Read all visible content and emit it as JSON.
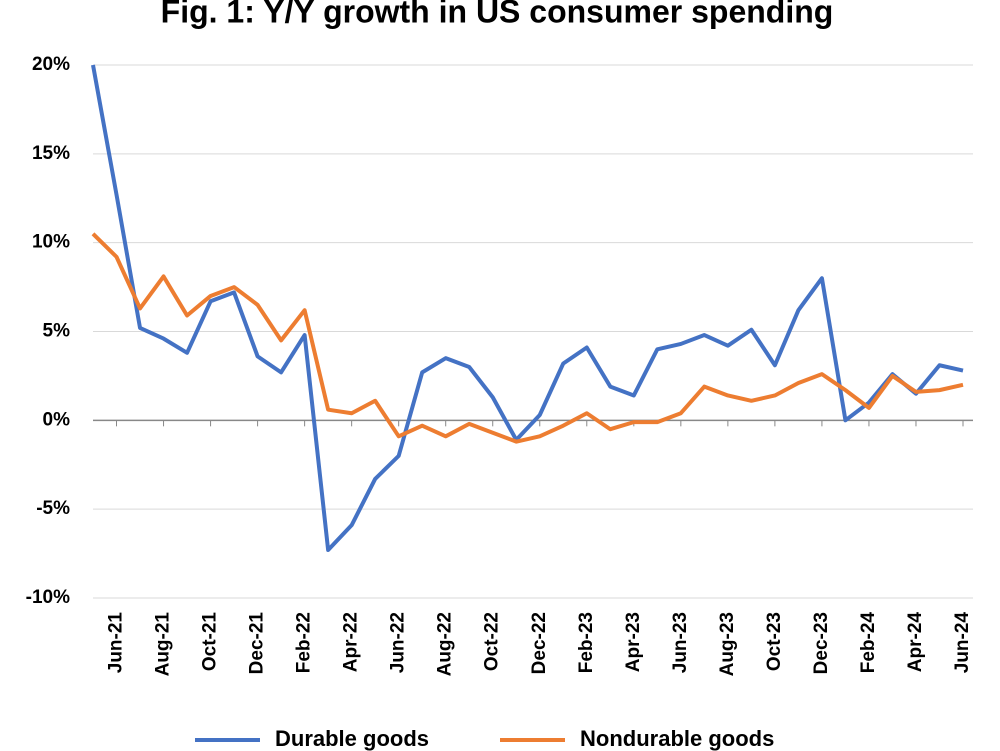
{
  "chart_data": {
    "type": "line",
    "title": "Fig. 1: Y/Y growth in US consumer spending",
    "categories": [
      null,
      "Jun-21",
      null,
      "Aug-21",
      null,
      "Oct-21",
      null,
      "Dec-21",
      null,
      "Feb-22",
      null,
      "Apr-22",
      null,
      "Jun-22",
      null,
      "Aug-22",
      null,
      "Oct-22",
      null,
      "Dec-22",
      null,
      "Feb-23",
      null,
      "Apr-23",
      null,
      "Jun-23",
      null,
      "Aug-23",
      null,
      "Oct-23",
      null,
      "Dec-23",
      null,
      "Feb-24",
      null,
      "Apr-24",
      null,
      "Jun-24"
    ],
    "series": [
      {
        "name": "Durable goods",
        "color": "#4472c4",
        "values": [
          20,
          12.7,
          5.2,
          4.6,
          3.8,
          6.7,
          7.2,
          3.6,
          2.7,
          4.8,
          -7.3,
          -5.9,
          -3.3,
          -2,
          2.7,
          3.5,
          3,
          1.3,
          -1.1,
          0.3,
          3.2,
          4.1,
          1.9,
          1.4,
          4,
          4.3,
          4.8,
          4.2,
          5.1,
          3.1,
          6.2,
          8,
          0,
          1,
          2.6,
          1.5,
          3.1,
          2.8
        ]
      },
      {
        "name": "Nondurable goods",
        "color": "#ed7d31",
        "values": [
          10.5,
          9.2,
          6.3,
          8.1,
          5.9,
          7,
          7.5,
          6.5,
          4.5,
          6.2,
          0.6,
          0.4,
          1.1,
          -0.9,
          -0.3,
          -0.9,
          -0.2,
          -0.7,
          -1.2,
          -0.9,
          -0.3,
          0.4,
          -0.5,
          -0.1,
          -0.1,
          0.4,
          1.9,
          1.4,
          1.1,
          1.4,
          2.1,
          2.6,
          1.7,
          0.7,
          2.5,
          1.6,
          1.7,
          2
        ]
      }
    ],
    "ylim": [
      -10,
      20
    ],
    "yticks": [
      {
        "value": -10,
        "label": "-10%"
      },
      {
        "value": -5,
        "label": "-5%"
      },
      {
        "value": 0,
        "label": "0%"
      },
      {
        "value": 5,
        "label": "5%"
      },
      {
        "value": 10,
        "label": "10%"
      },
      {
        "value": 15,
        "label": "15%"
      },
      {
        "value": 20,
        "label": "20%"
      }
    ],
    "grid": true,
    "legend": "bottom"
  }
}
